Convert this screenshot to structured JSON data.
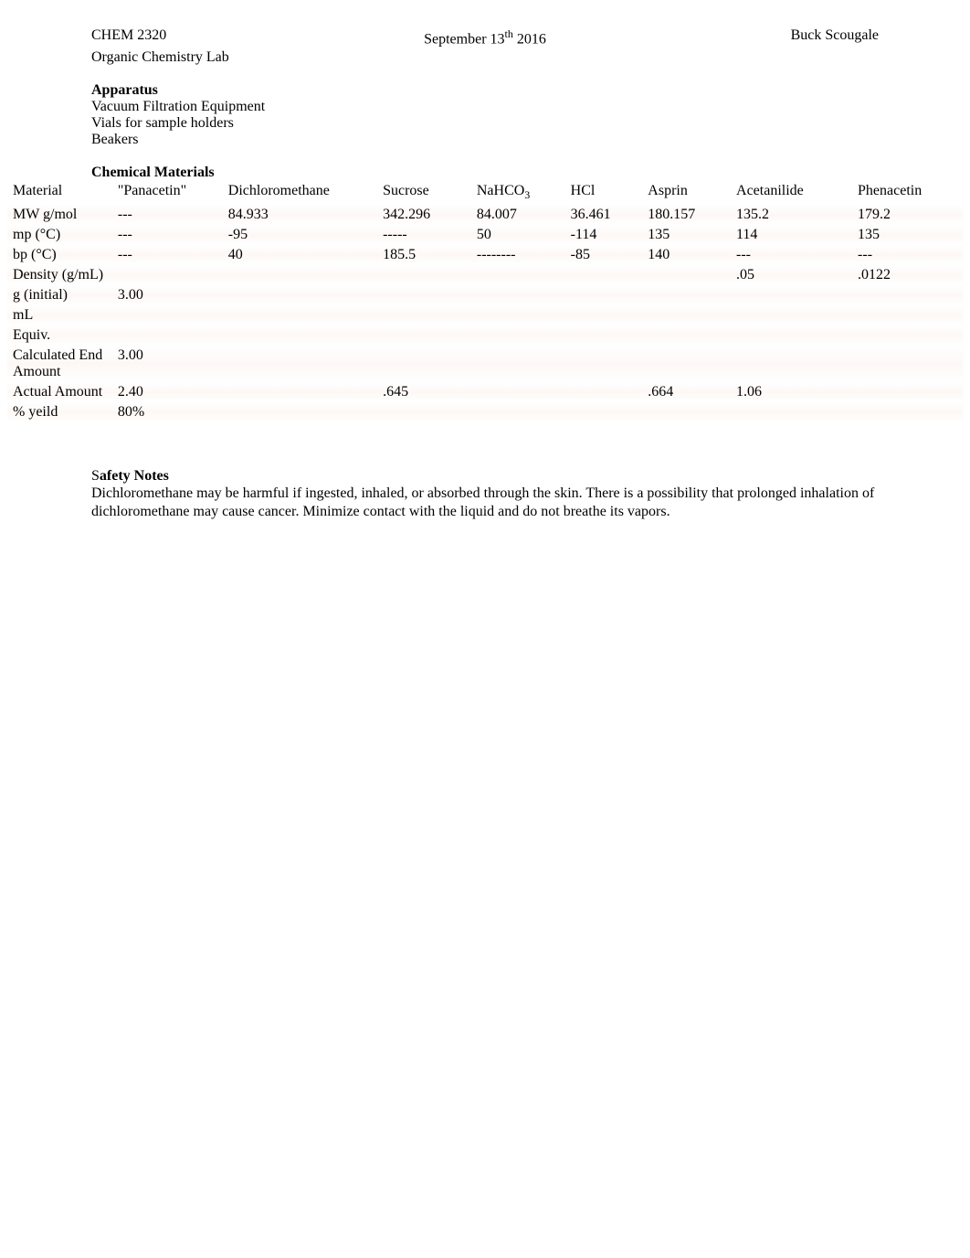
{
  "header": {
    "course": "CHEM 2320",
    "lab_name": "Organic Chemistry Lab",
    "date_prefix": "September 13",
    "date_sup": "th",
    "date_year": " 2016",
    "author": "Buck Scougale"
  },
  "apparatus": {
    "title": "Apparatus",
    "lines": [
      "Vacuum Filtration Equipment",
      "Vials for sample holders",
      "Beakers"
    ]
  },
  "chem_materials": {
    "title": "Chemical Materials",
    "headers": {
      "material": "Material",
      "panacetin": "\"Panacetin\"",
      "dichloro": "Dichloromethane",
      "sucrose": "Sucrose",
      "nahco3_pre": "NaHCO",
      "nahco3_sub": "3",
      "hcl": "HCl",
      "asprin": "Asprin",
      "acetanilide": "Acetanilide",
      "phenacetin": "Phenacetin"
    },
    "rows": [
      {
        "label": "MW g/mol",
        "panacetin": "---",
        "dichloro": "84.933",
        "sucrose": "342.296",
        "nahco3": "84.007",
        "hcl": "36.461",
        "asprin": "180.157",
        "acetanilide": "135.2",
        "phenacetin": "179.2"
      },
      {
        "label": "mp (°C)",
        "panacetin": "---",
        "dichloro": "-95",
        "sucrose": "-----",
        "nahco3": "50",
        "hcl": "-114",
        "asprin": "135",
        "acetanilide": "114",
        "phenacetin": "135"
      },
      {
        "label": "bp (°C)",
        "panacetin": "---",
        "dichloro": "40",
        "sucrose": "185.5",
        "nahco3": "--------",
        "hcl": "-85",
        "asprin": "140",
        "acetanilide": "---",
        "phenacetin": "---"
      },
      {
        "label": "Density (g/mL)",
        "panacetin": "",
        "dichloro": "",
        "sucrose": "",
        "nahco3": "",
        "hcl": "",
        "asprin": "",
        "acetanilide": ".05",
        "phenacetin": ".0122"
      },
      {
        "label": "g (initial)",
        "panacetin": "3.00",
        "dichloro": "",
        "sucrose": "",
        "nahco3": "",
        "hcl": "",
        "asprin": "",
        "acetanilide": "",
        "phenacetin": ""
      },
      {
        "label": "mL",
        "panacetin": "",
        "dichloro": "",
        "sucrose": "",
        "nahco3": "",
        "hcl": "",
        "asprin": "",
        "acetanilide": "",
        "phenacetin": ""
      },
      {
        "label": "Equiv.",
        "panacetin": "",
        "dichloro": "",
        "sucrose": "",
        "nahco3": "",
        "hcl": "",
        "asprin": "",
        "acetanilide": "",
        "phenacetin": ""
      },
      {
        "label": "Calculated End Amount",
        "panacetin": "3.00",
        "dichloro": "",
        "sucrose": "",
        "nahco3": "",
        "hcl": "",
        "asprin": "",
        "acetanilide": "",
        "phenacetin": ""
      },
      {
        "label": "Actual Amount",
        "panacetin": "2.40",
        "dichloro": "",
        "sucrose": ".645",
        "nahco3": "",
        "hcl": "",
        "asprin": ".664",
        "acetanilide": "1.06",
        "phenacetin": ""
      },
      {
        "label": "% yeild",
        "panacetin": "80%",
        "dichloro": "",
        "sucrose": "",
        "nahco3": "",
        "hcl": "",
        "asprin": "",
        "acetanilide": "",
        "phenacetin": ""
      }
    ]
  },
  "safety": {
    "title_s": "S",
    "title_rest": "afety Notes",
    "text": "Dichloromethane may be harmful if ingested, inhaled, or absorbed through the skin. There is a possibility that prolonged inhalation of dichloromethane may cause cancer. Minimize contact with the liquid and do not breathe its vapors."
  }
}
